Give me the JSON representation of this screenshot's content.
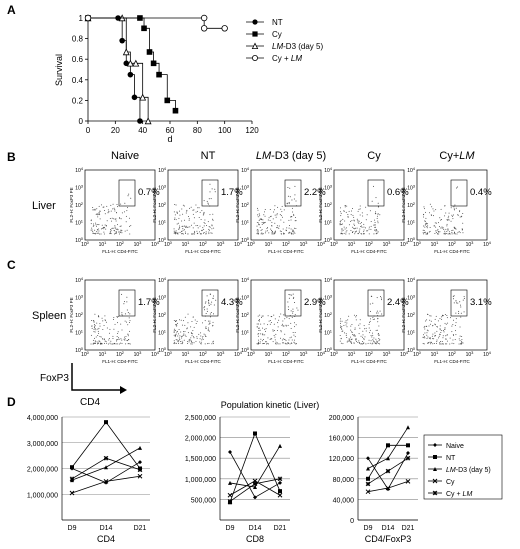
{
  "panel_labels": {
    "a": "A",
    "b": "B",
    "c": "C",
    "d": "D"
  },
  "chart_data": [
    {
      "id": "survival",
      "type": "line",
      "ylabel": "Survival",
      "xlabel": "d",
      "xlim": [
        0,
        120
      ],
      "ylim": [
        0,
        1
      ],
      "xticks": [
        "0",
        "20",
        "40",
        "60",
        "80",
        "100",
        "120"
      ],
      "yticks": [
        "0",
        "0.2",
        "0.4",
        "0.6",
        "0.8",
        "1"
      ],
      "legend_position": "right",
      "series": [
        {
          "name": "NT",
          "marker": "filled-circle",
          "x": [
            0,
            22,
            25,
            28,
            31,
            34,
            38
          ],
          "y": [
            1.0,
            1.0,
            0.78,
            0.56,
            0.45,
            0.23,
            0.0
          ]
        },
        {
          "name": "Cy",
          "marker": "filled-square",
          "x": [
            0,
            38,
            41,
            45,
            48,
            52,
            58,
            64
          ],
          "y": [
            1.0,
            1.0,
            0.9,
            0.67,
            0.56,
            0.45,
            0.2,
            0.1
          ]
        },
        {
          "name_parts": [
            "LM",
            "-D3 (day 5)"
          ],
          "marker": "open-triangle",
          "x": [
            0,
            25,
            28,
            31,
            35,
            40,
            44
          ],
          "y": [
            1.0,
            1.0,
            0.67,
            0.56,
            0.56,
            0.23,
            0.0
          ]
        },
        {
          "name_parts": [
            "Cy + ",
            "LM"
          ],
          "marker": "open-circle",
          "x": [
            0,
            85,
            85,
            100
          ],
          "y": [
            1.0,
            1.0,
            0.9,
            0.9
          ]
        }
      ]
    },
    {
      "id": "kinetic-cd4",
      "type": "line",
      "xlabel": "CD4",
      "categories": [
        "D9",
        "D14",
        "D21"
      ],
      "ylim": [
        0,
        4000000
      ],
      "yticks": [
        "1,000,000",
        "2,000,000",
        "3,000,000",
        "4,000,000"
      ],
      "series": [
        {
          "name": "Naive",
          "marker": "diamond",
          "values": [
            2000000,
            1450000,
            2250000
          ]
        },
        {
          "name": "NT",
          "marker": "square",
          "values": [
            2050000,
            3800000,
            2000000
          ]
        },
        {
          "name": "LM-D3 (day 5)",
          "marker": "triangle",
          "values": [
            1550000,
            2050000,
            2800000
          ]
        },
        {
          "name": "Cy",
          "marker": "x",
          "values": [
            1050000,
            1500000,
            1700000
          ]
        },
        {
          "name": "Cy + LM",
          "marker": "star",
          "values": [
            1600000,
            2400000,
            1950000
          ]
        }
      ]
    },
    {
      "id": "kinetic-cd8",
      "type": "line",
      "xlabel": "CD8",
      "categories": [
        "D9",
        "D14",
        "D21"
      ],
      "ylim": [
        0,
        2500000
      ],
      "yticks": [
        "500,000",
        "1,000,000",
        "1,500,000",
        "2,000,000",
        "2,500,000"
      ],
      "series": [
        {
          "name": "Naive",
          "marker": "diamond",
          "values": [
            1650000,
            550000,
            900000
          ]
        },
        {
          "name": "NT",
          "marker": "square",
          "values": [
            430000,
            2100000,
            700000
          ]
        },
        {
          "name": "LM-D3 (day 5)",
          "marker": "triangle",
          "values": [
            900000,
            800000,
            1800000
          ]
        },
        {
          "name": "Cy",
          "marker": "x",
          "values": [
            600000,
            950000,
            600000
          ]
        },
        {
          "name": "Cy + LM",
          "marker": "star",
          "values": [
            450000,
            880000,
            1000000
          ]
        }
      ]
    },
    {
      "id": "kinetic-cd4foxp3",
      "type": "line",
      "xlabel": "CD4/FoxP3",
      "title": "",
      "categories": [
        "D9",
        "D14",
        "D21"
      ],
      "ylim": [
        0,
        200000
      ],
      "yticks": [
        "0",
        "40,000",
        "80,000",
        "120,000",
        "160,000",
        "200,000"
      ],
      "legend_position": "right",
      "series": [
        {
          "name": "Naive",
          "marker": "diamond",
          "values": [
            120000,
            60000,
            130000
          ]
        },
        {
          "name": "NT",
          "marker": "square",
          "values": [
            80000,
            145000,
            145000
          ]
        },
        {
          "name_parts": [
            "LM",
            "-D3 (day 5)"
          ],
          "marker": "triangle",
          "values": [
            100000,
            120000,
            180000
          ]
        },
        {
          "name": "Cy",
          "marker": "x",
          "values": [
            55000,
            62000,
            75000
          ]
        },
        {
          "name_parts": [
            "Cy + ",
            "LM"
          ],
          "marker": "star",
          "values": [
            70000,
            95000,
            120000
          ]
        }
      ]
    }
  ],
  "kinetic_title": "Population kinetic (Liver)",
  "flow": {
    "columns": [
      {
        "id": "naive",
        "parts": [
          "Naive"
        ]
      },
      {
        "id": "nt",
        "parts": [
          "NT"
        ]
      },
      {
        "id": "lmd3",
        "parts": [
          "LM",
          "-D3 (day 5)"
        ]
      },
      {
        "id": "cy",
        "parts": [
          "Cy"
        ]
      },
      {
        "id": "cylm",
        "parts": [
          "Cy+",
          "LM"
        ]
      }
    ],
    "rows": [
      {
        "label": "Liver",
        "percents": [
          "0.7%",
          "1.7%",
          "2.2%",
          "0.6%",
          "0.4%"
        ]
      },
      {
        "label": "Spleen",
        "percents": [
          "1.7%",
          "4.3%",
          "2.9%",
          "2.4%",
          "3.1%"
        ]
      }
    ],
    "y_axis_label": "FL2-H: FoxP3 PE",
    "x_axis_label": "FL1-H: CD4-FITC",
    "tick_base": "10",
    "tick_exps": [
      "0",
      "1",
      "2",
      "3",
      "4"
    ],
    "axis_key": {
      "y": "FoxP3",
      "x": "CD4"
    }
  }
}
